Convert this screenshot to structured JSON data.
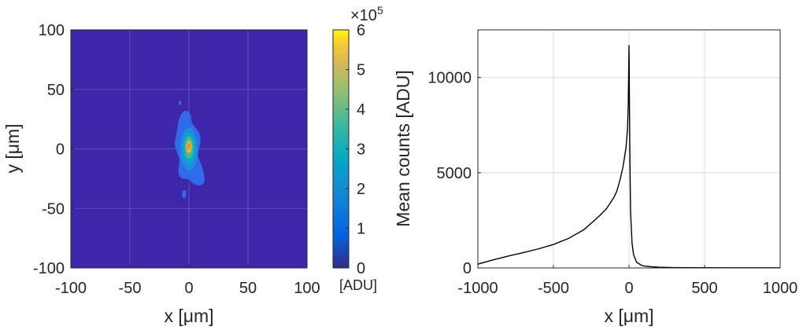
{
  "chart_data": [
    {
      "type": "heatmap",
      "title": "",
      "xlabel": "x [μm]",
      "ylabel": "y [μm]",
      "xlim": [
        -100,
        100
      ],
      "ylim": [
        -100,
        100
      ],
      "xticks": [
        -100,
        -50,
        0,
        50,
        100
      ],
      "yticks": [
        -100,
        -50,
        0,
        50,
        100
      ],
      "xtick_labels": [
        "-100",
        "-50",
        "0",
        "50",
        "100"
      ],
      "ytick_labels": [
        "-100",
        "-50",
        "0",
        "50",
        "100"
      ],
      "grid": true,
      "colormap": "parula",
      "colorbar": {
        "range": [
          0,
          6
        ],
        "ticks": [
          0,
          1,
          2,
          3,
          4,
          5,
          6
        ],
        "tick_labels": [
          "0",
          "1",
          "2",
          "3",
          "4",
          "5",
          "6"
        ],
        "multiplier_prefix": "×10",
        "multiplier_exponent": "5",
        "unit": "[ADU]"
      },
      "spot": {
        "peak_value": 600000,
        "center": [
          0,
          0
        ],
        "extent_x": [
          -12,
          13
        ],
        "extent_y": [
          -45,
          32
        ]
      }
    },
    {
      "type": "line",
      "title": "",
      "xlabel": "x [μm]",
      "ylabel": "Mean counts [ADU]",
      "xlim": [
        -1000,
        1000
      ],
      "ylim": [
        0,
        12500
      ],
      "xticks": [
        -1000,
        -500,
        0,
        500,
        1000
      ],
      "yticks": [
        0,
        5000,
        10000
      ],
      "xtick_labels": [
        "-1000",
        "-500",
        "0",
        "500",
        "1000"
      ],
      "ytick_labels": [
        "0",
        "5000",
        "10000"
      ],
      "grid": true,
      "color": "#000000",
      "series": [
        {
          "x": [
            -1000,
            -900,
            -800,
            -700,
            -600,
            -500,
            -400,
            -300,
            -200,
            -150,
            -100,
            -80,
            -60,
            -40,
            -20,
            -10,
            -5,
            0,
            5,
            10,
            20,
            30,
            50,
            80,
            100,
            150,
            200,
            300,
            500,
            700,
            1000
          ],
          "y": [
            200,
            420,
            620,
            800,
            1000,
            1230,
            1550,
            2000,
            2700,
            3100,
            3700,
            4050,
            4600,
            5300,
            6300,
            7300,
            8600,
            11700,
            6500,
            3000,
            1300,
            700,
            300,
            150,
            100,
            60,
            40,
            20,
            10,
            5,
            5
          ]
        }
      ]
    }
  ]
}
